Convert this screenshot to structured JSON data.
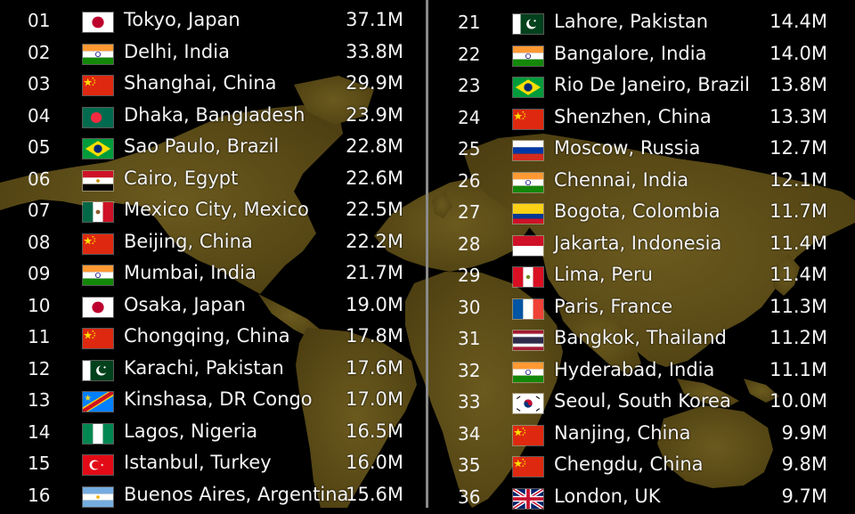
{
  "colors": {
    "background": "#000000",
    "map": "#5b4a16",
    "divider": "#8a8a8a",
    "text": "#f2f2f2"
  },
  "left_column": [
    {
      "rank": "01",
      "city": "Tokyo, Japan",
      "population": "37.1M",
      "flag": "japan-flag-icon"
    },
    {
      "rank": "02",
      "city": "Delhi, India",
      "population": "33.8M",
      "flag": "india-flag-icon"
    },
    {
      "rank": "03",
      "city": "Shanghai, China",
      "population": "29.9M",
      "flag": "china-flag-icon"
    },
    {
      "rank": "04",
      "city": "Dhaka, Bangladesh",
      "population": "23.9M",
      "flag": "bangladesh-flag-icon"
    },
    {
      "rank": "05",
      "city": "Sao Paulo, Brazil",
      "population": "22.8M",
      "flag": "brazil-flag-icon"
    },
    {
      "rank": "06",
      "city": "Cairo, Egypt",
      "population": "22.6M",
      "flag": "egypt-flag-icon"
    },
    {
      "rank": "07",
      "city": "Mexico City, Mexico",
      "population": "22.5M",
      "flag": "mexico-flag-icon"
    },
    {
      "rank": "08",
      "city": "Beijing, China",
      "population": "22.2M",
      "flag": "china-flag-icon"
    },
    {
      "rank": "09",
      "city": "Mumbai, India",
      "population": "21.7M",
      "flag": "india-flag-icon"
    },
    {
      "rank": "10",
      "city": "Osaka, Japan",
      "population": "19.0M",
      "flag": "japan-flag-icon"
    },
    {
      "rank": "11",
      "city": "Chongqing, China",
      "population": "17.8M",
      "flag": "china-flag-icon"
    },
    {
      "rank": "12",
      "city": "Karachi, Pakistan",
      "population": "17.6M",
      "flag": "pakistan-flag-icon"
    },
    {
      "rank": "13",
      "city": "Kinshasa, DR Congo",
      "population": "17.0M",
      "flag": "dr-congo-flag-icon"
    },
    {
      "rank": "14",
      "city": "Lagos, Nigeria",
      "population": "16.5M",
      "flag": "nigeria-flag-icon"
    },
    {
      "rank": "15",
      "city": "Istanbul, Turkey",
      "population": "16.0M",
      "flag": "turkey-flag-icon"
    },
    {
      "rank": "16",
      "city": "Buenos Aires, Argentina",
      "population": "15.6M",
      "flag": "argentina-flag-icon"
    }
  ],
  "right_column": [
    {
      "rank": "21",
      "city": "Lahore, Pakistan",
      "population": "14.4M",
      "flag": "pakistan-flag-icon"
    },
    {
      "rank": "22",
      "city": "Bangalore, India",
      "population": "14.0M",
      "flag": "india-flag-icon"
    },
    {
      "rank": "23",
      "city": "Rio De Janeiro, Brazil",
      "population": "13.8M",
      "flag": "brazil-flag-icon"
    },
    {
      "rank": "24",
      "city": "Shenzhen, China",
      "population": "13.3M",
      "flag": "china-flag-icon"
    },
    {
      "rank": "25",
      "city": "Moscow, Russia",
      "population": "12.7M",
      "flag": "russia-flag-icon"
    },
    {
      "rank": "26",
      "city": "Chennai, India",
      "population": "12.1M",
      "flag": "india-flag-icon"
    },
    {
      "rank": "27",
      "city": "Bogota, Colombia",
      "population": "11.7M",
      "flag": "colombia-flag-icon"
    },
    {
      "rank": "28",
      "city": "Jakarta, Indonesia",
      "population": "11.4M",
      "flag": "indonesia-flag-icon"
    },
    {
      "rank": "29",
      "city": "Lima, Peru",
      "population": "11.4M",
      "flag": "peru-flag-icon"
    },
    {
      "rank": "30",
      "city": "Paris, France",
      "population": "11.3M",
      "flag": "france-flag-icon"
    },
    {
      "rank": "31",
      "city": "Bangkok, Thailand",
      "population": "11.2M",
      "flag": "thailand-flag-icon"
    },
    {
      "rank": "32",
      "city": "Hyderabad, India",
      "population": "11.1M",
      "flag": "india-flag-icon"
    },
    {
      "rank": "33",
      "city": "Seoul, South Korea",
      "population": "10.0M",
      "flag": "south-korea-flag-icon"
    },
    {
      "rank": "34",
      "city": "Nanjing, China",
      "population": "9.9M",
      "flag": "china-flag-icon"
    },
    {
      "rank": "35",
      "city": "Chengdu, China",
      "population": "9.8M",
      "flag": "china-flag-icon"
    },
    {
      "rank": "36",
      "city": "London, UK",
      "population": "9.7M",
      "flag": "uk-flag-icon"
    }
  ]
}
